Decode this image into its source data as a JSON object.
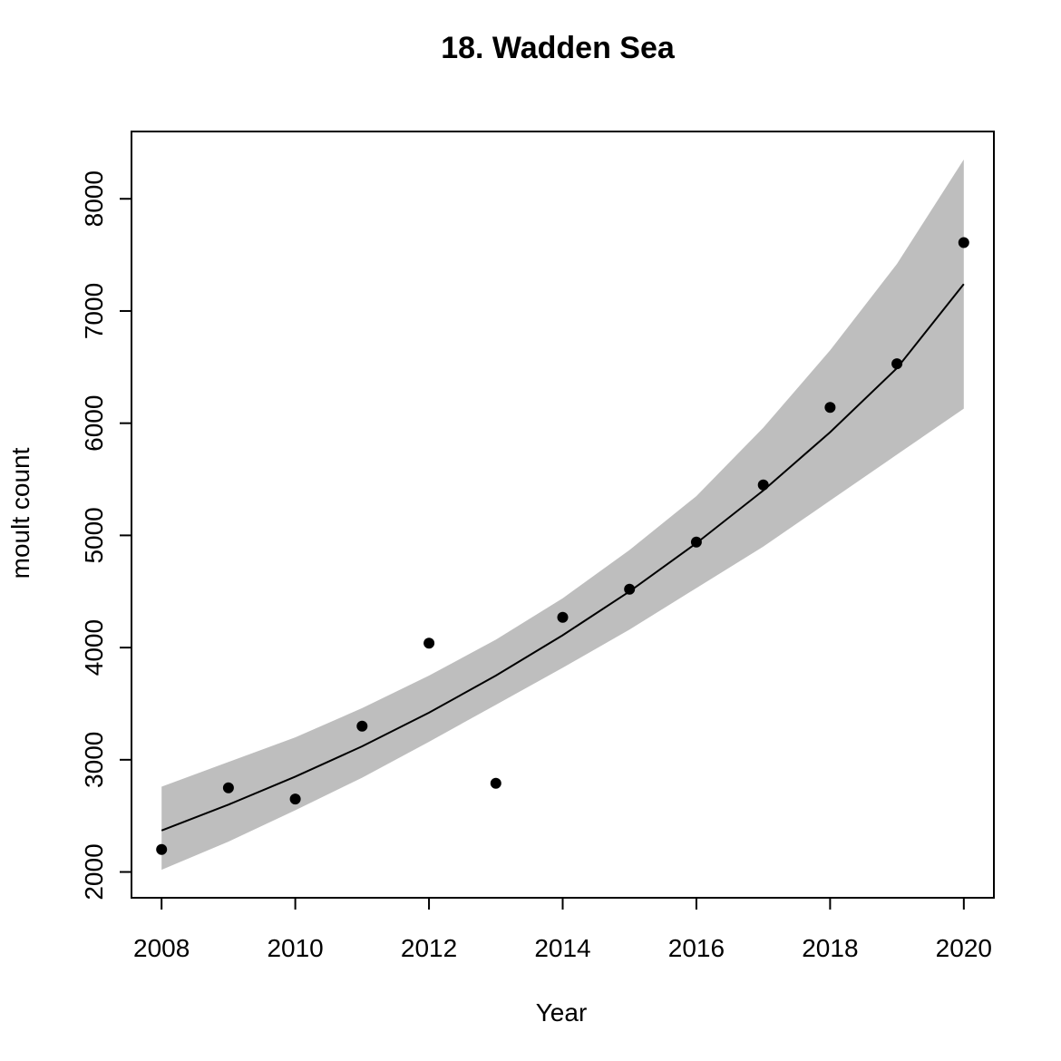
{
  "chart_data": {
    "type": "scatter",
    "title": "18. Wadden Sea",
    "xlabel": "Year",
    "ylabel": "moult count",
    "xlim": [
      2007.55,
      2020.45
    ],
    "ylim": [
      1770,
      8600
    ],
    "x_ticks": [
      2008,
      2010,
      2012,
      2014,
      2016,
      2018,
      2020
    ],
    "y_ticks": [
      2000,
      3000,
      4000,
      5000,
      6000,
      7000,
      8000
    ],
    "grid": false,
    "series": [
      {
        "type": "scatter",
        "x": [
          2008,
          2009,
          2010,
          2011,
          2012,
          2013,
          2014,
          2015,
          2016,
          2017,
          2018,
          2019,
          2020
        ],
        "y": [
          2200,
          2750,
          2650,
          3300,
          4040,
          2790,
          4270,
          4520,
          4940,
          5450,
          6140,
          6530,
          7610
        ]
      },
      {
        "type": "line",
        "x": [
          2008,
          2009,
          2010,
          2011,
          2012,
          2013,
          2014,
          2015,
          2016,
          2017,
          2018,
          2019,
          2020
        ],
        "y": [
          2370,
          2600,
          2850,
          3120,
          3420,
          3750,
          4110,
          4500,
          4930,
          5400,
          5920,
          6490,
          7240
        ]
      },
      {
        "type": "band",
        "x": [
          2008,
          2009,
          2010,
          2011,
          2012,
          2013,
          2014,
          2015,
          2016,
          2017,
          2018,
          2019,
          2020
        ],
        "lower": [
          2020,
          2270,
          2550,
          2840,
          3160,
          3490,
          3820,
          4160,
          4530,
          4900,
          5310,
          5720,
          6130
        ],
        "upper": [
          2760,
          2980,
          3200,
          3460,
          3750,
          4070,
          4440,
          4870,
          5350,
          5960,
          6650,
          7420,
          8350
        ]
      }
    ],
    "colors": {
      "band": "#bebebe",
      "line": "#000000",
      "points": "#000000",
      "frame": "#000000"
    }
  }
}
